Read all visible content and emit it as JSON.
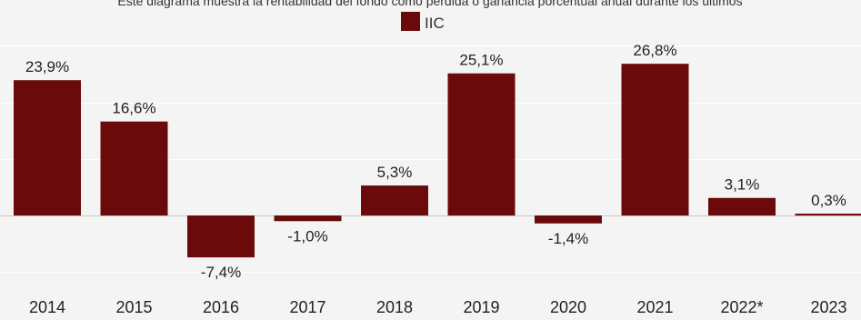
{
  "chart_data": {
    "type": "bar",
    "subtitle": "Este diagrama muestra la rentabilidad del fondo como pérdida o ganancia porcentual anual durante los últimos",
    "categories": [
      "2014",
      "2015",
      "2016",
      "2017",
      "2018",
      "2019",
      "2020",
      "2021",
      "2022*",
      "2023"
    ],
    "series": [
      {
        "name": "IIC",
        "values": [
          23.9,
          16.6,
          -7.4,
          -1.0,
          5.3,
          25.1,
          -1.4,
          26.8,
          3.1,
          0.3
        ],
        "labels": [
          "23,9%",
          "16,6%",
          "-7,4%",
          "-1,0%",
          "5,3%",
          "25,1%",
          "-1,4%",
          "26,8%",
          "3,1%",
          "0,3%"
        ]
      }
    ],
    "legend_position": "top-center",
    "grid": true,
    "ylim": [
      -13,
      31
    ],
    "colors": {
      "bar": "#6a0a0a",
      "background": "#f4f4f4",
      "grid": "#ffffff",
      "zero_line": "#c8c8c8"
    }
  }
}
